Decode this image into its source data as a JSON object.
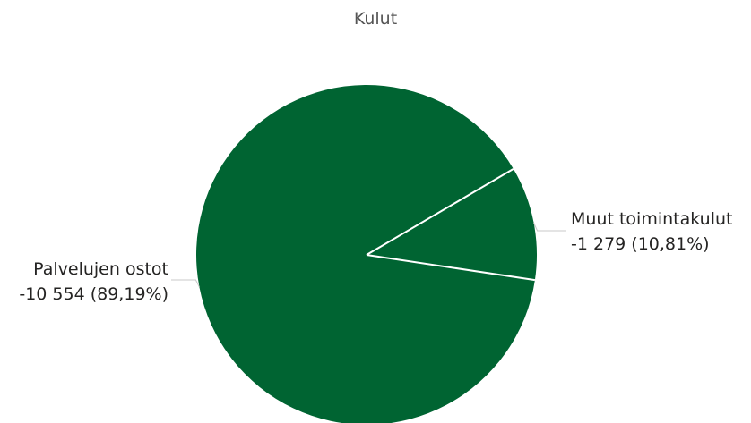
{
  "chart_data": {
    "type": "pie",
    "title": "Kulut",
    "slices": [
      {
        "name": "Muut toimintakulut",
        "value": -1279,
        "value_label": "-1 279 (10,81%)",
        "percent": 10.81
      },
      {
        "name": "Palvelujen ostot",
        "value": -10554,
        "value_label": "-10 554 (89,19%)",
        "percent": 89.19
      }
    ],
    "colors": {
      "slice": "#006432",
      "separator": "#ffffff",
      "leader": "#c8c8c8"
    },
    "legend": "none"
  }
}
